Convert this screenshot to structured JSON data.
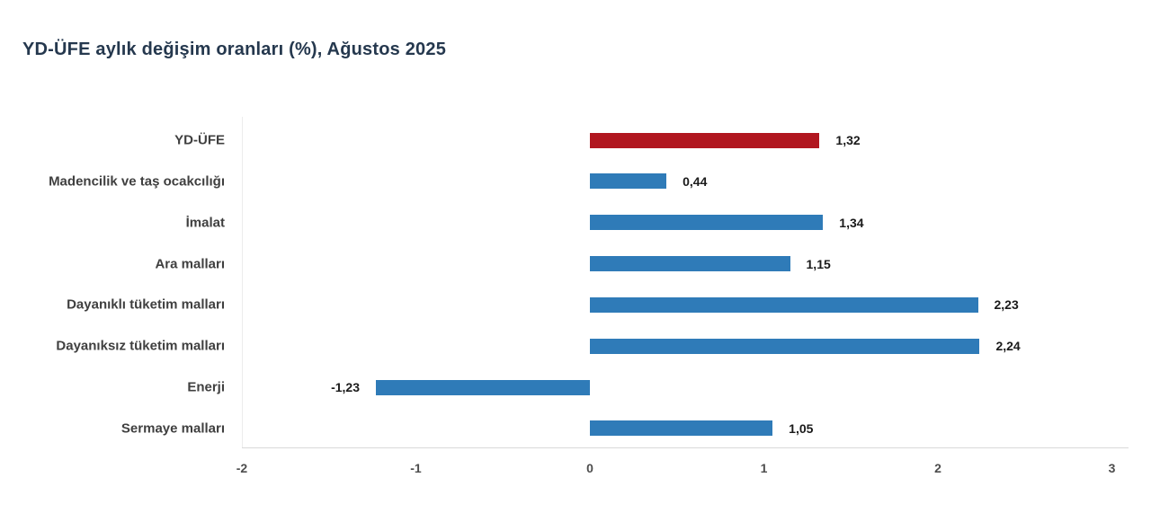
{
  "title": "YD-ÜFE aylık değişim oranları (%), Ağustos 2025",
  "chart_data": {
    "type": "bar",
    "orientation": "horizontal",
    "title": "YD-ÜFE aylık değişim oranları (%), Ağustos 2025",
    "categories": [
      "YD-ÜFE",
      "Madencilik ve taş ocakcılığı",
      "İmalat",
      "Ara malları",
      "Dayanıklı tüketim malları",
      "Dayanıksız tüketim malları",
      "Enerji",
      "Sermaye malları"
    ],
    "values": [
      1.32,
      0.44,
      1.34,
      1.15,
      2.23,
      2.24,
      -1.23,
      1.05
    ],
    "value_labels": [
      "1,32",
      "0,44",
      "1,34",
      "1,15",
      "2,23",
      "2,24",
      "-1,23",
      "1,05"
    ],
    "highlighted_category_index": 0,
    "xlabel": "",
    "ylabel": "",
    "xlim": [
      -2,
      3
    ],
    "x_ticks": [
      -2,
      -1,
      0,
      1,
      2,
      3
    ],
    "x_tick_labels": [
      "-2",
      "-1",
      "0",
      "1",
      "2",
      "3"
    ],
    "grid": "off",
    "legend": "none"
  },
  "colors": {
    "highlight_bar": "#B1161F",
    "default_bar": "#2F7BB8",
    "title_text": "#25384E",
    "category_text": "#3F3F3F",
    "value_text": "#1A1A1A",
    "tick_text": "#4D4D4D",
    "axis_line": "#D9D9D9",
    "plot_border": "#ECECEC",
    "background": "#FFFFFF"
  }
}
